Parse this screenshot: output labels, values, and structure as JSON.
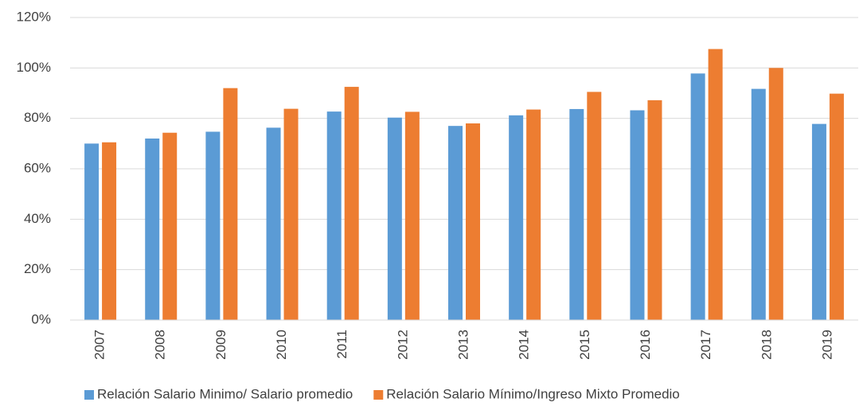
{
  "chart_data": {
    "type": "bar",
    "categories": [
      "2007",
      "2008",
      "2009",
      "2010",
      "2011",
      "2012",
      "2013",
      "2014",
      "2015",
      "2016",
      "2017",
      "2018",
      "2019"
    ],
    "series": [
      {
        "name": "Relación Salario Minimo/ Salario promedio",
        "color": "#5b9bd5",
        "values": [
          70,
          72,
          74.7,
          76.3,
          82.7,
          80.3,
          77,
          81.2,
          83.7,
          83.2,
          97.8,
          91.7,
          77.8
        ]
      },
      {
        "name": "Relación Salario Mínimo/Ingreso Mixto Promedio",
        "color": "#ed7d31",
        "values": [
          70.5,
          74.3,
          92,
          83.8,
          92.5,
          82.6,
          78,
          83.5,
          90.5,
          87.2,
          107.5,
          100,
          89.8
        ]
      }
    ],
    "ylim": [
      0,
      120
    ],
    "yticks": [
      {
        "value": 0,
        "label": "0%"
      },
      {
        "value": 20,
        "label": "20%"
      },
      {
        "value": 40,
        "label": "40%"
      },
      {
        "value": 60,
        "label": "60%"
      },
      {
        "value": 80,
        "label": "80%"
      },
      {
        "value": 100,
        "label": "100%"
      },
      {
        "value": 120,
        "label": "120%"
      }
    ],
    "grid": true,
    "legend": "bottom"
  }
}
